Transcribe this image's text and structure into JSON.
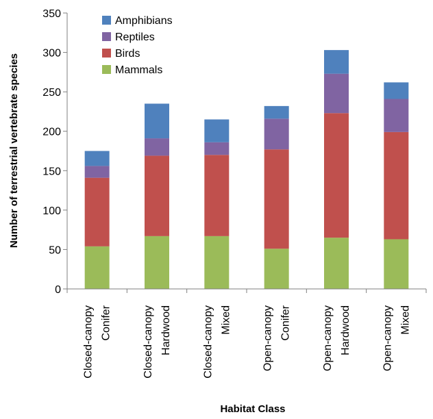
{
  "chart_data": {
    "type": "bar",
    "stacked": true,
    "title": "",
    "xlabel": "Habitat Class",
    "ylabel": "Number of terrestrial vertebrate species",
    "ylim": [
      0,
      350
    ],
    "yticks": [
      "0",
      "50",
      "100",
      "150",
      "200",
      "250",
      "300",
      "350"
    ],
    "categories": [
      [
        "Closed-canopy",
        "Conifer"
      ],
      [
        "Closed-canopy",
        "Hardwood"
      ],
      [
        "Closed-canopy",
        "Mixed"
      ],
      [
        "Open-canopy",
        "Conifer"
      ],
      [
        "Open-canopy",
        "Hardwood"
      ],
      [
        "Open-canopy",
        "Mixed"
      ]
    ],
    "series": [
      {
        "name": "Mammals",
        "color": "#9bbb59",
        "values": [
          54,
          67,
          67,
          51,
          65,
          63
        ]
      },
      {
        "name": "Birds",
        "color": "#c0504d",
        "values": [
          87,
          102,
          103,
          126,
          158,
          136
        ]
      },
      {
        "name": "Reptiles",
        "color": "#8064a2",
        "values": [
          15,
          22,
          16,
          39,
          50,
          42
        ]
      },
      {
        "name": "Amphibians",
        "color": "#4f81bd",
        "values": [
          19,
          44,
          29,
          16,
          30,
          21
        ]
      }
    ],
    "legend": {
      "placement": "top-left",
      "order": [
        "Amphibians",
        "Reptiles",
        "Birds",
        "Mammals"
      ]
    },
    "grid": false
  }
}
